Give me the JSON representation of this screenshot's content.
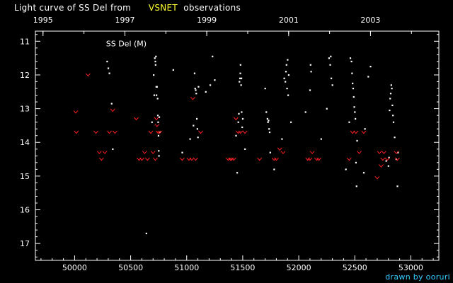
{
  "header": {
    "title_prefix": "Light curve of SS Del from",
    "title_highlight": "VSNET",
    "title_suffix": "observations"
  },
  "credit": "drawn by ooruri",
  "colors": {
    "background": "#000000",
    "observation": "#ffffff",
    "upper_limit": "#ff2020",
    "highlight": "#ffff33",
    "credit": "#33ccff"
  },
  "chart_data": {
    "type": "scatter",
    "title": "Light curve of SS Del from VSNET observations",
    "star_label": "SS Del (M)",
    "x_axis": {
      "label": "",
      "range": [
        49650,
        53250
      ],
      "ticks": [
        50000,
        50500,
        51000,
        51500,
        52000,
        52500,
        53000
      ],
      "tick_labels": [
        "50000",
        "50500",
        "51000",
        "51500",
        "52000",
        "52500",
        "53000"
      ]
    },
    "x2_axis": {
      "ticks": [
        49718,
        50449,
        51179,
        51910,
        52640
      ],
      "tick_labels": [
        "1995",
        "1997",
        "1999",
        "2001",
        "2003"
      ]
    },
    "y_axis": {
      "label": "",
      "range": [
        10.7,
        17.5
      ],
      "inverted": true,
      "ticks": [
        11,
        12,
        13,
        14,
        15,
        16,
        17
      ],
      "tick_labels": [
        "11",
        "12",
        "13",
        "14",
        "15",
        "16",
        "17"
      ]
    },
    "grid": false,
    "series": [
      {
        "marker": "dot",
        "points": [
          [
            50290,
            11.6
          ],
          [
            50300,
            11.8
          ],
          [
            50310,
            11.95
          ],
          [
            50330,
            12.85
          ],
          [
            50340,
            14.2
          ],
          [
            50640,
            16.7
          ],
          [
            50690,
            13.4
          ],
          [
            50705,
            12.0
          ],
          [
            50710,
            12.6
          ],
          [
            50715,
            11.5
          ],
          [
            50720,
            11.6
          ],
          [
            50722,
            11.7
          ],
          [
            50725,
            11.45
          ],
          [
            50728,
            12.35
          ],
          [
            50730,
            12.6
          ],
          [
            50735,
            12.35
          ],
          [
            50740,
            12.7
          ],
          [
            50742,
            13.2
          ],
          [
            50745,
            13.4
          ],
          [
            50748,
            13.8
          ],
          [
            50750,
            14.25
          ],
          [
            50752,
            14.4
          ],
          [
            50755,
            13.25
          ],
          [
            50760,
            13.7
          ],
          [
            50880,
            11.85
          ],
          [
            50960,
            14.3
          ],
          [
            51030,
            13.9
          ],
          [
            51060,
            13.5
          ],
          [
            51070,
            11.95
          ],
          [
            51075,
            12.4
          ],
          [
            51080,
            12.45
          ],
          [
            51085,
            12.55
          ],
          [
            51090,
            13.3
          ],
          [
            51095,
            13.6
          ],
          [
            51100,
            13.85
          ],
          [
            51105,
            12.35
          ],
          [
            51170,
            12.5
          ],
          [
            51210,
            12.3
          ],
          [
            51230,
            11.45
          ],
          [
            51250,
            12.15
          ],
          [
            51440,
            13.8
          ],
          [
            51450,
            14.9
          ],
          [
            51460,
            13.4
          ],
          [
            51465,
            13.15
          ],
          [
            51470,
            12.2
          ],
          [
            51475,
            12.1
          ],
          [
            51478,
            11.95
          ],
          [
            51480,
            11.7
          ],
          [
            51485,
            12.3
          ],
          [
            51488,
            12.1
          ],
          [
            51490,
            13.1
          ],
          [
            51495,
            13.55
          ],
          [
            51500,
            13.3
          ],
          [
            51520,
            14.2
          ],
          [
            51700,
            12.4
          ],
          [
            51710,
            13.1
          ],
          [
            51720,
            13.3
          ],
          [
            51725,
            13.4
          ],
          [
            51730,
            13.35
          ],
          [
            51735,
            13.6
          ],
          [
            51740,
            13.7
          ],
          [
            51745,
            14.3
          ],
          [
            51780,
            14.8
          ],
          [
            51850,
            13.9
          ],
          [
            51870,
            12.1
          ],
          [
            51880,
            12.2
          ],
          [
            51885,
            11.9
          ],
          [
            51890,
            11.7
          ],
          [
            51895,
            12.4
          ],
          [
            51900,
            11.55
          ],
          [
            51905,
            12.6
          ],
          [
            51910,
            12.0
          ],
          [
            51930,
            13.4
          ],
          [
            52060,
            13.1
          ],
          [
            52100,
            12.45
          ],
          [
            52105,
            11.7
          ],
          [
            52110,
            11.9
          ],
          [
            52200,
            13.9
          ],
          [
            52250,
            13.0
          ],
          [
            52270,
            11.5
          ],
          [
            52280,
            11.7
          ],
          [
            52285,
            11.45
          ],
          [
            52290,
            12.1
          ],
          [
            52300,
            12.3
          ],
          [
            52420,
            14.8
          ],
          [
            52450,
            13.4
          ],
          [
            52460,
            11.5
          ],
          [
            52470,
            11.6
          ],
          [
            52475,
            11.95
          ],
          [
            52480,
            12.25
          ],
          [
            52485,
            12.4
          ],
          [
            52490,
            12.65
          ],
          [
            52495,
            12.95
          ],
          [
            52500,
            13.1
          ],
          [
            52505,
            13.3
          ],
          [
            52510,
            14.6
          ],
          [
            52515,
            15.3
          ],
          [
            52520,
            13.95
          ],
          [
            52580,
            14.9
          ],
          [
            52590,
            13.6
          ],
          [
            52620,
            12.05
          ],
          [
            52640,
            11.75
          ],
          [
            52780,
            14.55
          ],
          [
            52800,
            14.7
          ],
          [
            52805,
            14.45
          ],
          [
            52810,
            13.05
          ],
          [
            52815,
            12.7
          ],
          [
            52820,
            12.55
          ],
          [
            52825,
            12.3
          ],
          [
            52830,
            12.4
          ],
          [
            52835,
            12.9
          ],
          [
            52840,
            13.2
          ],
          [
            52845,
            13.4
          ],
          [
            52855,
            13.85
          ],
          [
            52870,
            14.5
          ],
          [
            52880,
            15.3
          ],
          [
            52885,
            14.3
          ]
        ]
      },
      {
        "marker": "upper-limit",
        "points": [
          [
            50010,
            13.1
          ],
          [
            50015,
            13.7
          ],
          [
            50120,
            12.0
          ],
          [
            50190,
            13.7
          ],
          [
            50220,
            14.3
          ],
          [
            50240,
            14.5
          ],
          [
            50270,
            14.3
          ],
          [
            50310,
            13.7
          ],
          [
            50340,
            13.05
          ],
          [
            50360,
            13.7
          ],
          [
            50550,
            13.3
          ],
          [
            50575,
            14.5
          ],
          [
            50600,
            14.5
          ],
          [
            50625,
            14.3
          ],
          [
            50650,
            14.5
          ],
          [
            50680,
            13.7
          ],
          [
            50700,
            14.3
          ],
          [
            50720,
            14.5
          ],
          [
            50730,
            13.3
          ],
          [
            50735,
            13.5
          ],
          [
            50745,
            13.7
          ],
          [
            50760,
            13.7
          ],
          [
            50960,
            14.5
          ],
          [
            51020,
            14.5
          ],
          [
            51045,
            14.5
          ],
          [
            51055,
            12.7
          ],
          [
            51080,
            14.5
          ],
          [
            51125,
            13.7
          ],
          [
            51370,
            14.5
          ],
          [
            51390,
            14.5
          ],
          [
            51400,
            14.5
          ],
          [
            51420,
            14.5
          ],
          [
            51440,
            13.3
          ],
          [
            51460,
            13.7
          ],
          [
            51480,
            13.7
          ],
          [
            51520,
            13.7
          ],
          [
            51650,
            14.5
          ],
          [
            51780,
            14.5
          ],
          [
            51800,
            14.5
          ],
          [
            51830,
            14.2
          ],
          [
            51860,
            14.3
          ],
          [
            52080,
            14.5
          ],
          [
            52100,
            14.5
          ],
          [
            52120,
            14.3
          ],
          [
            52160,
            14.5
          ],
          [
            52180,
            14.5
          ],
          [
            52450,
            14.5
          ],
          [
            52480,
            13.7
          ],
          [
            52510,
            13.7
          ],
          [
            52540,
            14.3
          ],
          [
            52580,
            13.7
          ],
          [
            52700,
            15.05
          ],
          [
            52720,
            14.3
          ],
          [
            52735,
            14.7
          ],
          [
            52750,
            14.5
          ],
          [
            52760,
            14.3
          ],
          [
            52790,
            14.5
          ],
          [
            52870,
            14.3
          ],
          [
            52880,
            14.5
          ]
        ]
      }
    ]
  }
}
